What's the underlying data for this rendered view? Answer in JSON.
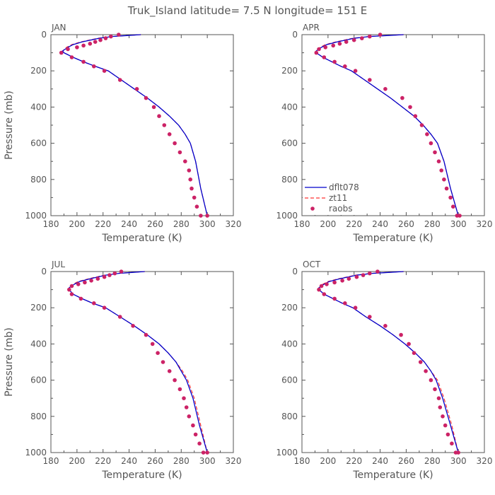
{
  "figure": {
    "title": "Truk_Island  latitude= 7.5 N longitude= 151 E"
  },
  "colors": {
    "model": "#0000cc",
    "model2": "#ff3333",
    "obs": "#cc2266",
    "axis": "#555555"
  },
  "legend": {
    "items": [
      {
        "label": "dflt078",
        "style": "solid-line",
        "color": "#0000cc"
      },
      {
        "label": "zt11",
        "style": "dashed-line",
        "color": "#ff3333"
      },
      {
        "label": "raobs",
        "style": "dot",
        "color": "#cc2266"
      }
    ]
  },
  "chart_data": [
    {
      "type": "line",
      "panel_label": "JAN",
      "xlabel": "Temperature (K)",
      "ylabel": "Pressure (mb)",
      "xlim": [
        180,
        320
      ],
      "ylim": [
        1000,
        0
      ],
      "xticks": [
        180,
        200,
        220,
        240,
        260,
        280,
        300,
        320
      ],
      "yticks": [
        0,
        200,
        400,
        600,
        800,
        1000
      ],
      "series": [
        {
          "name": "dflt078",
          "x": [
            249,
            238,
            227,
            217,
            204,
            197,
            193,
            189,
            190,
            197,
            205,
            214,
            224,
            234,
            244,
            254,
            263,
            271,
            278,
            283,
            287,
            291,
            295,
            300
          ],
          "y": [
            0,
            5,
            10,
            20,
            40,
            55,
            70,
            90,
            100,
            125,
            150,
            175,
            200,
            250,
            300,
            350,
            400,
            450,
            500,
            550,
            600,
            700,
            850,
            1000
          ]
        },
        {
          "name": "zt11",
          "x": [
            249,
            237,
            226,
            216,
            203,
            196,
            192,
            189,
            190,
            197,
            205,
            214,
            224,
            234,
            244,
            254,
            263,
            271,
            278,
            283,
            287,
            291,
            295,
            300
          ],
          "y": [
            0,
            5,
            10,
            20,
            40,
            55,
            70,
            90,
            100,
            125,
            150,
            175,
            200,
            250,
            300,
            350,
            400,
            450,
            500,
            550,
            600,
            700,
            850,
            1000
          ]
        },
        {
          "name": "raobs",
          "x": [
            232,
            226,
            222,
            218,
            214,
            210,
            205,
            200,
            193,
            188,
            196,
            205,
            213,
            221,
            233,
            246,
            253,
            259,
            263,
            267,
            271,
            275,
            279,
            283,
            286,
            287,
            288,
            290,
            292,
            295,
            300
          ],
          "y": [
            0,
            10,
            20,
            30,
            40,
            50,
            60,
            70,
            80,
            100,
            125,
            150,
            175,
            200,
            250,
            300,
            350,
            400,
            450,
            500,
            550,
            600,
            650,
            700,
            750,
            800,
            850,
            900,
            950,
            1000,
            1000
          ]
        }
      ]
    },
    {
      "type": "line",
      "panel_label": "APR",
      "xlabel": "Temperature (K)",
      "ylabel": "Pressure (mb)",
      "xlim": [
        180,
        320
      ],
      "ylim": [
        1000,
        0
      ],
      "xticks": [
        180,
        200,
        220,
        240,
        260,
        280,
        300,
        320
      ],
      "yticks": [
        0,
        200,
        400,
        600,
        800,
        1000
      ],
      "series": [
        {
          "name": "dflt078",
          "x": [
            258,
            245,
            232,
            220,
            207,
            199,
            195,
            191,
            191,
            196,
            203,
            210,
            218,
            228,
            238,
            248,
            257,
            266,
            273,
            279,
            284,
            289,
            294,
            300
          ],
          "y": [
            0,
            5,
            10,
            20,
            40,
            55,
            70,
            90,
            100,
            125,
            150,
            175,
            200,
            250,
            300,
            350,
            400,
            450,
            500,
            550,
            600,
            700,
            850,
            1000
          ]
        },
        {
          "name": "zt11",
          "x": [
            258,
            244,
            231,
            219,
            206,
            198,
            194,
            191,
            191,
            196,
            203,
            210,
            218,
            228,
            238,
            248,
            257,
            266,
            273,
            279,
            284,
            289,
            294,
            300
          ],
          "y": [
            0,
            5,
            10,
            20,
            40,
            55,
            70,
            90,
            100,
            125,
            150,
            175,
            200,
            250,
            300,
            350,
            400,
            450,
            500,
            550,
            600,
            700,
            850,
            1000
          ]
        },
        {
          "name": "raobs",
          "x": [
            240,
            232,
            226,
            220,
            214,
            209,
            204,
            198,
            193,
            191,
            197,
            205,
            213,
            221,
            232,
            244,
            257,
            263,
            267,
            272,
            276,
            279,
            282,
            285,
            287,
            289,
            291,
            294,
            296,
            299,
            301
          ],
          "y": [
            0,
            10,
            20,
            30,
            40,
            50,
            60,
            70,
            80,
            100,
            125,
            150,
            175,
            200,
            250,
            300,
            350,
            400,
            450,
            500,
            550,
            600,
            650,
            700,
            750,
            800,
            850,
            900,
            950,
            1000,
            1000
          ]
        }
      ]
    },
    {
      "type": "line",
      "panel_label": "JUL",
      "xlabel": "Temperature (K)",
      "ylabel": "Pressure (mb)",
      "xlim": [
        180,
        320
      ],
      "ylim": [
        1000,
        0
      ],
      "xticks": [
        180,
        200,
        220,
        240,
        260,
        280,
        300,
        320
      ],
      "yticks": [
        0,
        200,
        400,
        600,
        800,
        1000
      ],
      "series": [
        {
          "name": "dflt078",
          "x": [
            252,
            242,
            232,
            222,
            210,
            202,
            198,
            194,
            194,
            197,
            204,
            212,
            222,
            233,
            244,
            254,
            263,
            270,
            276,
            280,
            284,
            289,
            294,
            300
          ],
          "y": [
            0,
            5,
            10,
            20,
            40,
            55,
            70,
            90,
            100,
            125,
            150,
            175,
            200,
            250,
            300,
            350,
            400,
            450,
            500,
            550,
            600,
            700,
            850,
            1000
          ]
        },
        {
          "name": "zt11",
          "x": [
            252,
            241,
            231,
            221,
            209,
            201,
            197,
            194,
            194,
            197,
            204,
            212,
            222,
            233,
            244,
            254,
            263,
            270,
            276,
            281,
            285,
            290,
            295,
            300
          ],
          "y": [
            0,
            5,
            10,
            20,
            40,
            55,
            70,
            90,
            100,
            125,
            150,
            175,
            200,
            250,
            300,
            350,
            400,
            450,
            500,
            550,
            600,
            700,
            850,
            1000
          ]
        },
        {
          "name": "raobs",
          "x": [
            234,
            229,
            225,
            221,
            216,
            211,
            206,
            201,
            196,
            194,
            196,
            203,
            213,
            221,
            233,
            243,
            253,
            258,
            262,
            266,
            271,
            275,
            279,
            282,
            284,
            286,
            289,
            291,
            294,
            297,
            300
          ],
          "y": [
            0,
            10,
            20,
            30,
            40,
            50,
            60,
            70,
            80,
            100,
            125,
            150,
            175,
            200,
            250,
            300,
            350,
            400,
            450,
            500,
            550,
            600,
            650,
            700,
            750,
            800,
            850,
            900,
            950,
            1000,
            1000
          ]
        }
      ]
    },
    {
      "type": "line",
      "panel_label": "OCT",
      "xlabel": "Temperature (K)",
      "ylabel": "Pressure (mb)",
      "xlim": [
        180,
        320
      ],
      "ylim": [
        1000,
        0
      ],
      "xticks": [
        180,
        200,
        220,
        240,
        260,
        280,
        300,
        320
      ],
      "yticks": [
        0,
        200,
        400,
        600,
        800,
        1000
      ],
      "series": [
        {
          "name": "dflt078",
          "x": [
            258,
            246,
            234,
            222,
            209,
            201,
            197,
            193,
            193,
            197,
            204,
            211,
            219,
            229,
            240,
            250,
            259,
            267,
            274,
            279,
            283,
            288,
            294,
            300
          ],
          "y": [
            0,
            5,
            10,
            20,
            40,
            55,
            70,
            90,
            100,
            125,
            150,
            175,
            200,
            250,
            300,
            350,
            400,
            450,
            500,
            550,
            600,
            700,
            850,
            1000
          ]
        },
        {
          "name": "zt11",
          "x": [
            258,
            245,
            233,
            221,
            208,
            200,
            196,
            193,
            193,
            197,
            204,
            211,
            219,
            229,
            240,
            250,
            259,
            267,
            274,
            279,
            284,
            289,
            295,
            300
          ],
          "y": [
            0,
            5,
            10,
            20,
            40,
            55,
            70,
            90,
            100,
            125,
            150,
            175,
            200,
            250,
            300,
            350,
            400,
            450,
            500,
            550,
            600,
            700,
            850,
            1000
          ]
        },
        {
          "name": "raobs",
          "x": [
            238,
            232,
            227,
            222,
            216,
            211,
            205,
            199,
            195,
            193,
            197,
            205,
            213,
            221,
            232,
            244,
            256,
            262,
            266,
            271,
            275,
            279,
            282,
            285,
            286,
            288,
            290,
            292,
            295,
            298,
            300
          ],
          "y": [
            0,
            10,
            20,
            30,
            40,
            50,
            60,
            70,
            80,
            100,
            125,
            150,
            175,
            200,
            250,
            300,
            350,
            400,
            450,
            500,
            550,
            600,
            650,
            700,
            750,
            800,
            850,
            900,
            950,
            1000,
            1000
          ]
        }
      ]
    }
  ]
}
